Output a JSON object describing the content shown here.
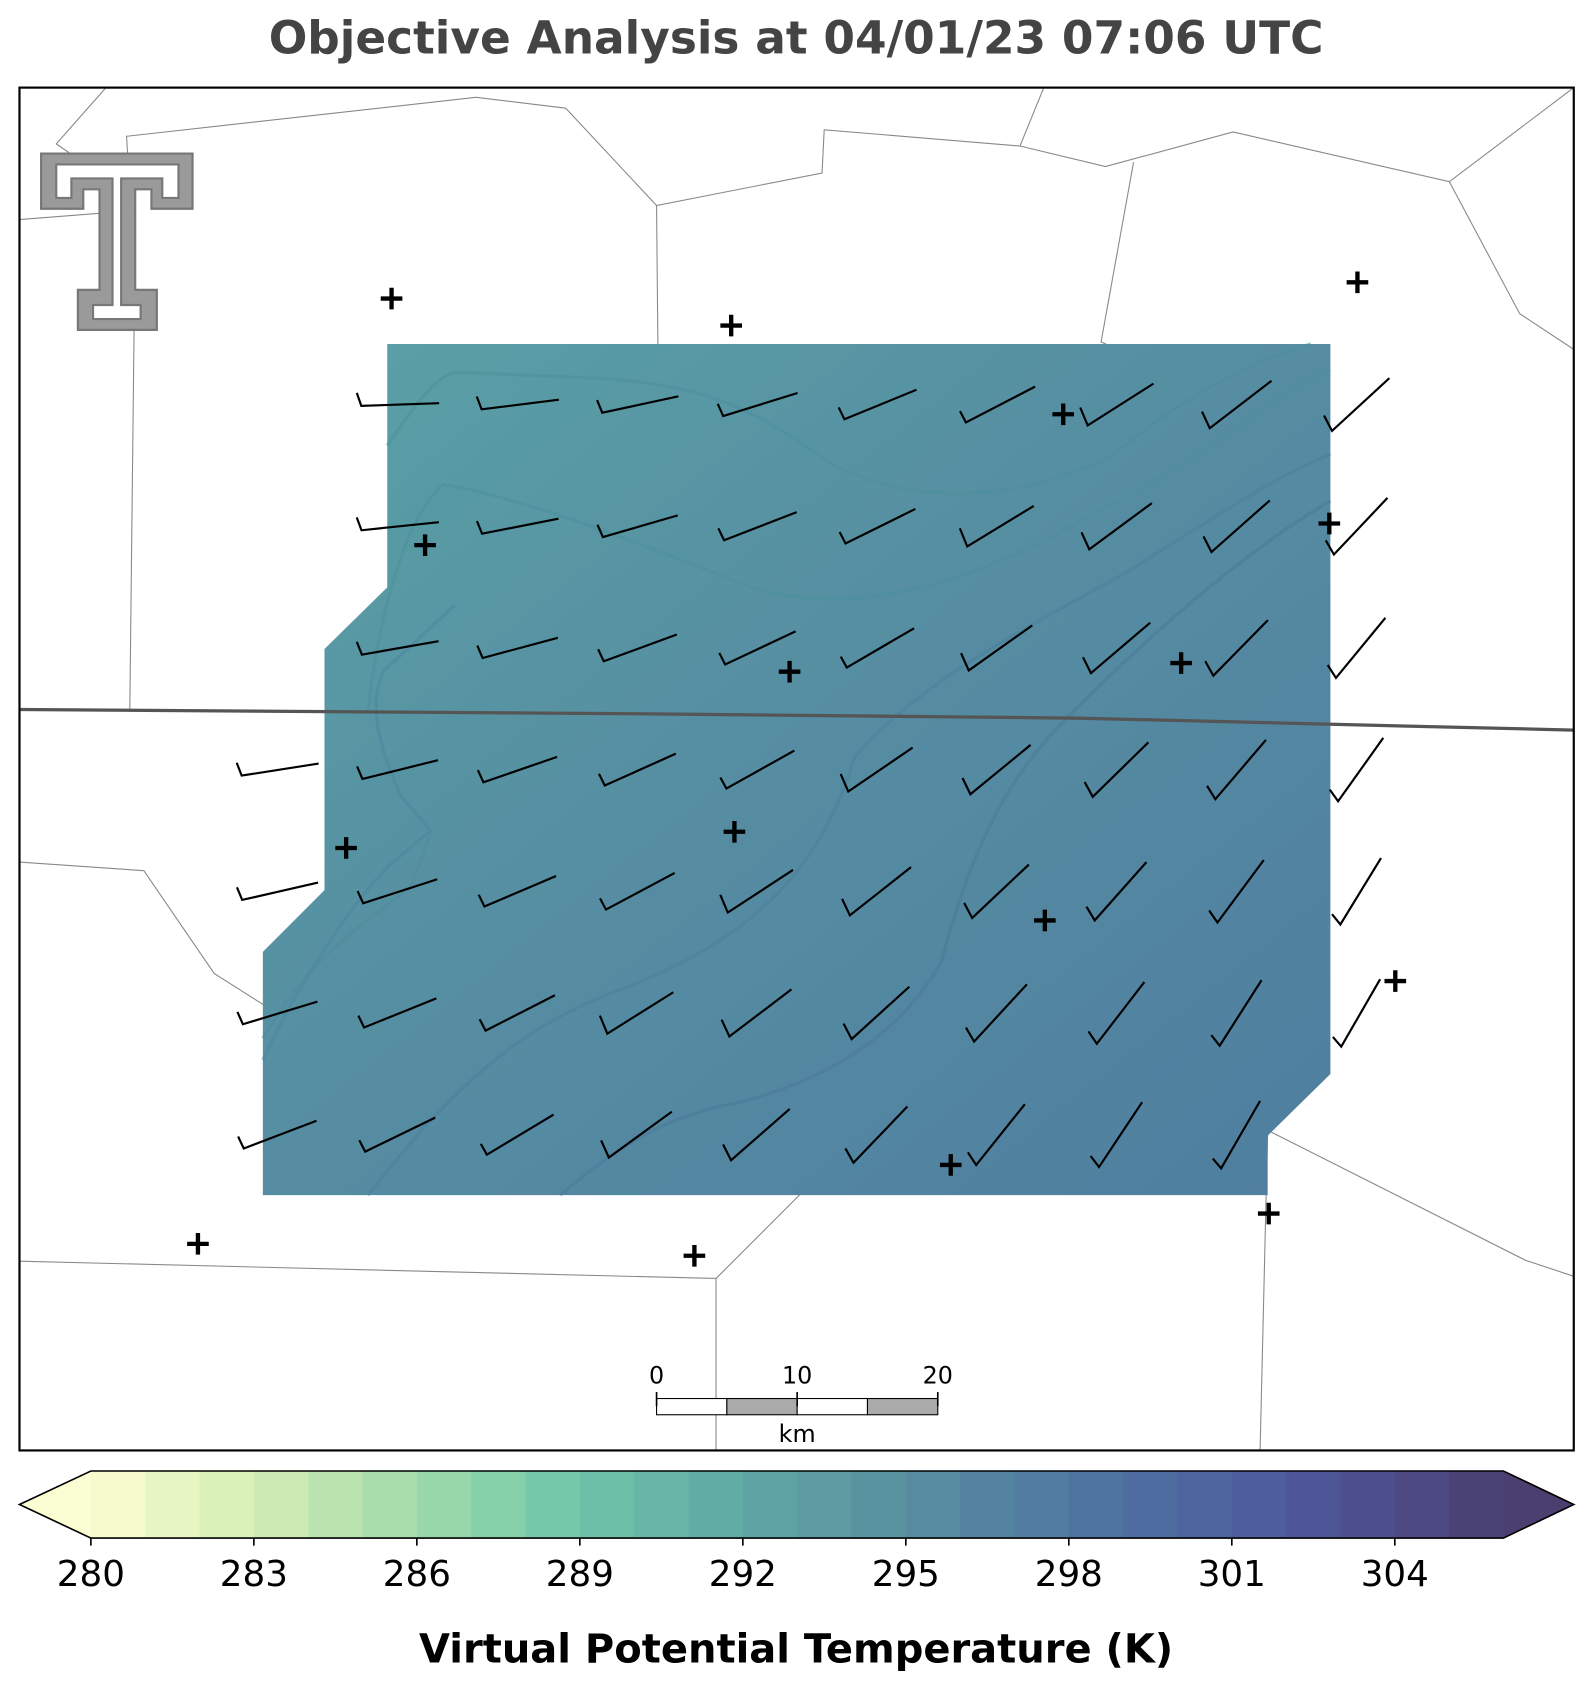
{
  "title": "Objective Analysis at 04/01/23 07:06 UTC",
  "scale_bar": {
    "ticks": [
      0,
      10,
      20
    ],
    "unit": "km"
  },
  "colorbar": {
    "label": "Virtual Potential Temperature (K)",
    "lim": [
      280,
      306
    ],
    "step": 1,
    "ticks": [
      280,
      283,
      286,
      289,
      292,
      295,
      298,
      301,
      304
    ],
    "colormap": [
      "#fbfdd2",
      "#d6efb6",
      "#a3dcaa",
      "#72c8a8",
      "#60aca6",
      "#5a93a0",
      "#527da0",
      "#4d66a0",
      "#4f5294",
      "#4a3f6f"
    ]
  }
}
